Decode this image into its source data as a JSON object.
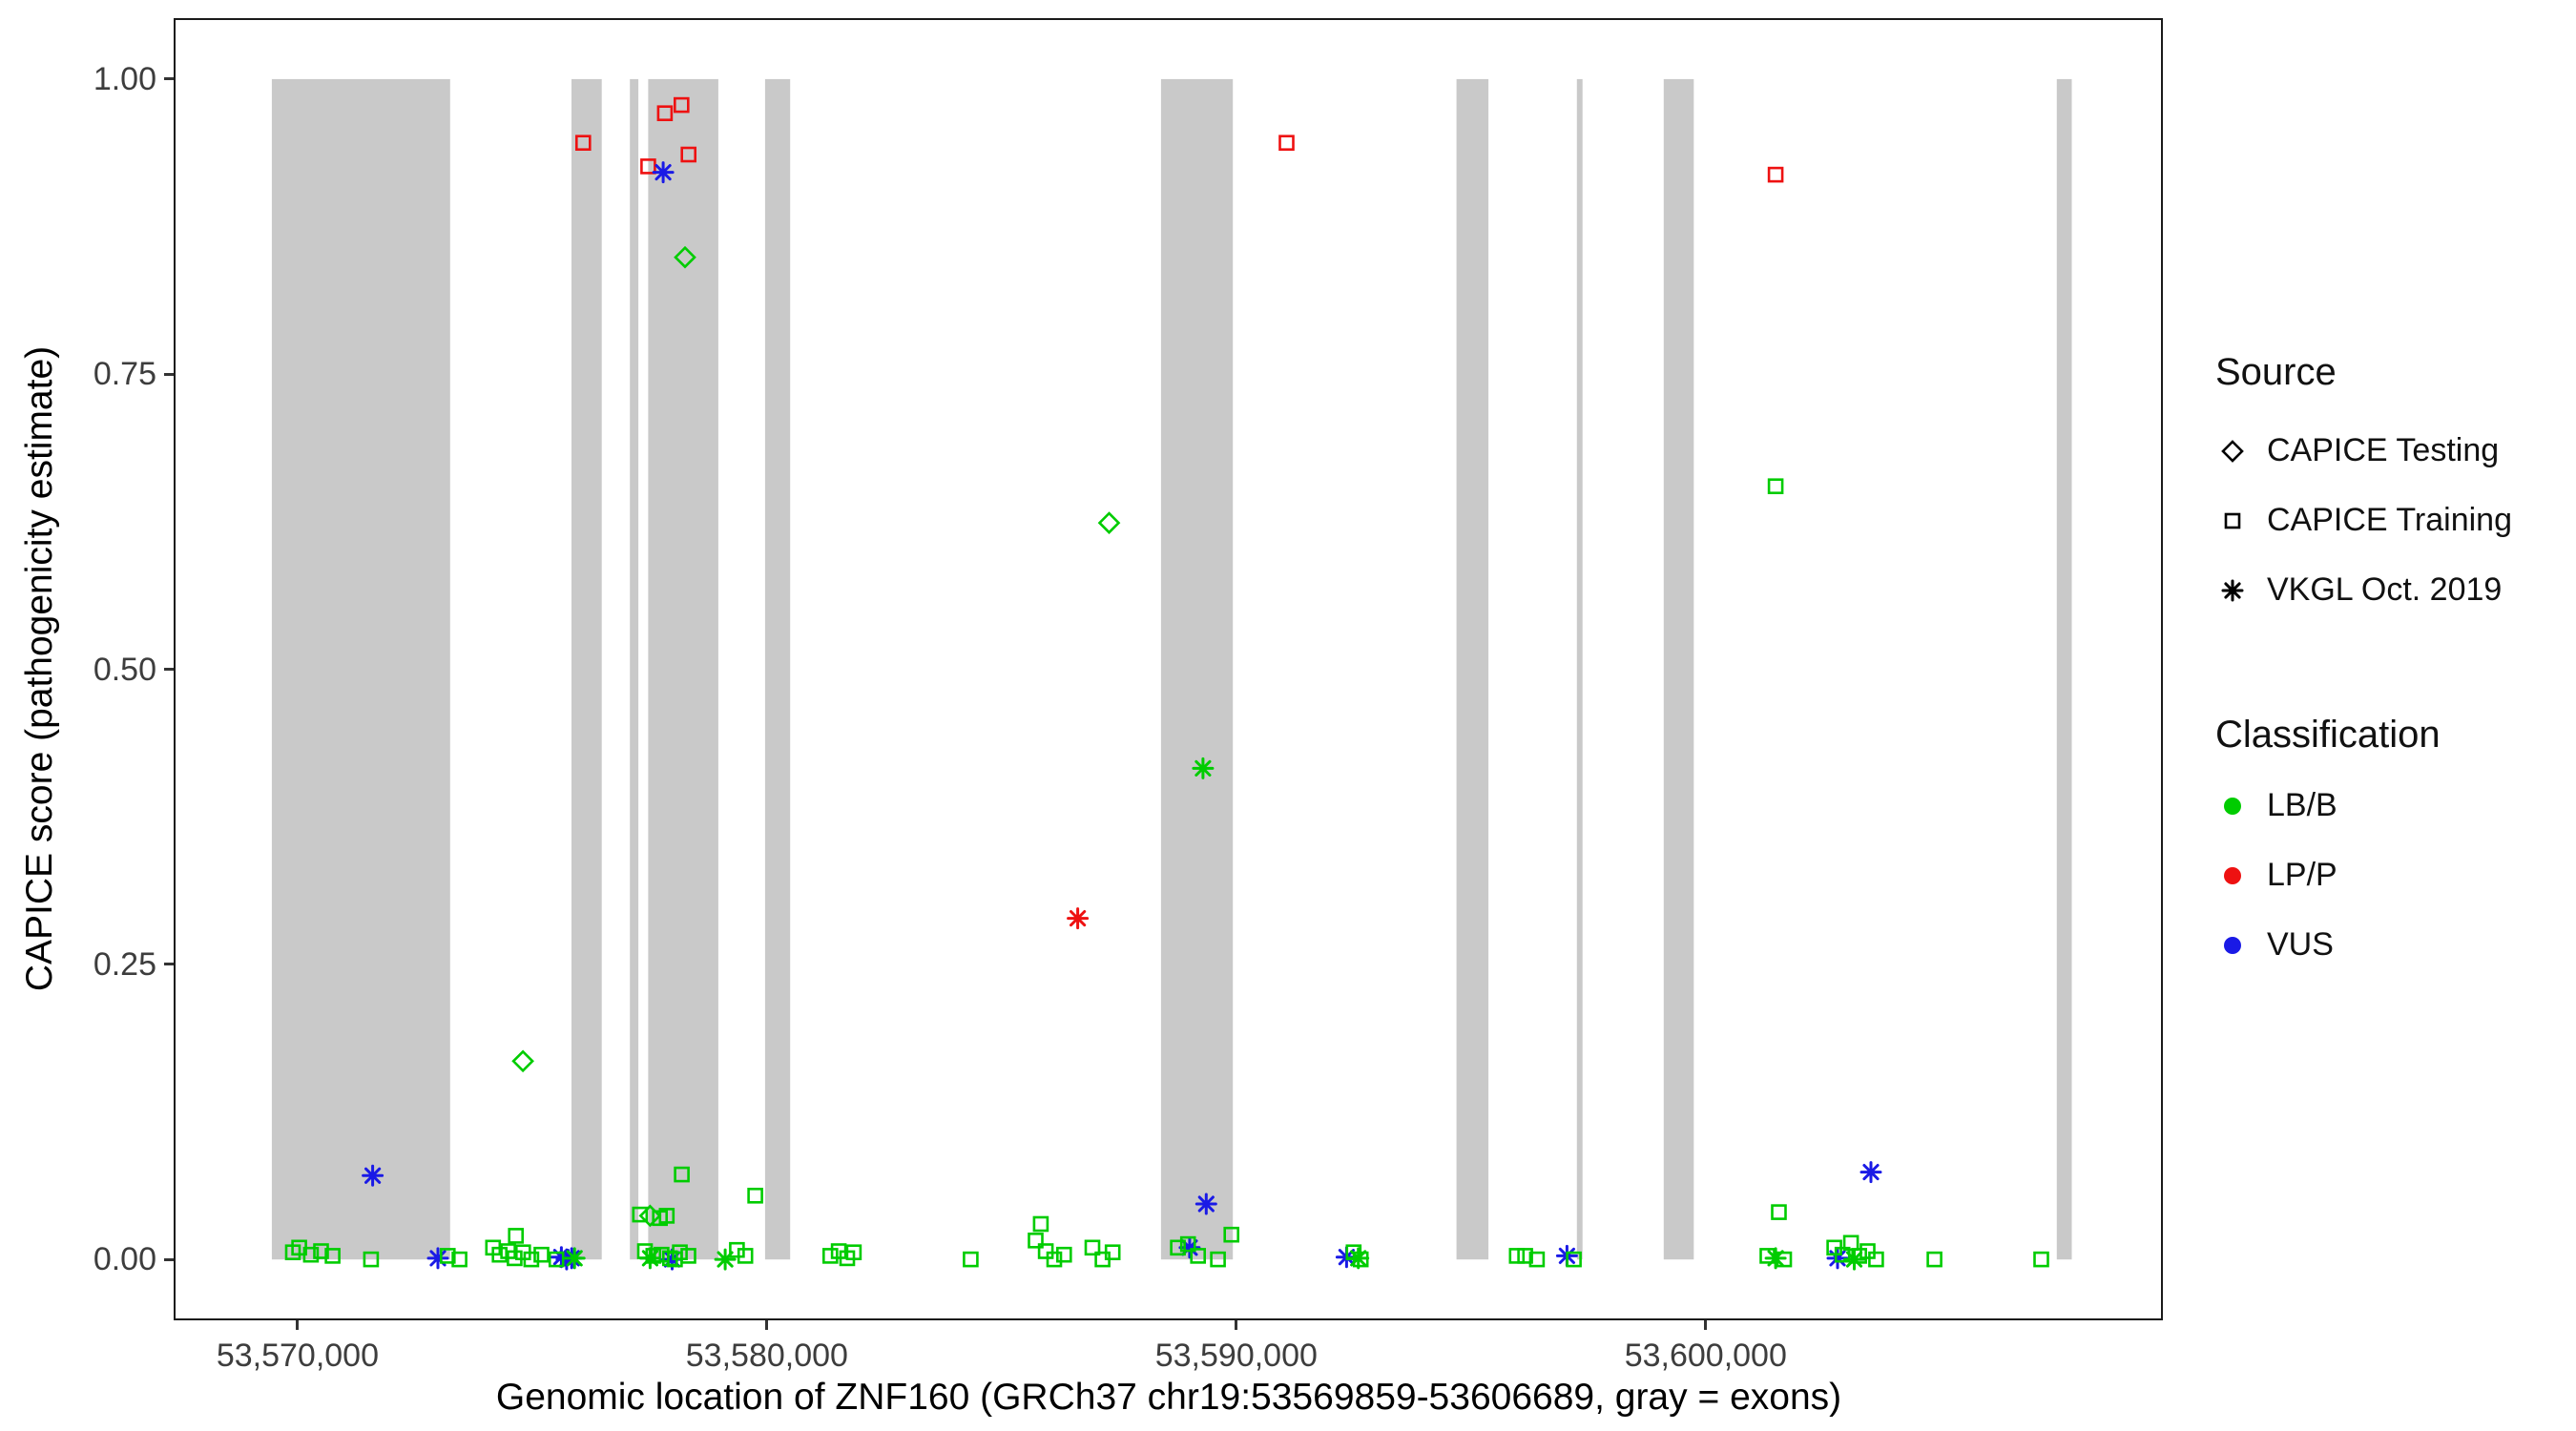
{
  "chart_data": {
    "type": "scatter",
    "title": "",
    "xlabel": "Genomic location of ZNF160 (GRCh37 chr19:53569859-53606689, gray = exons)",
    "ylabel": "CAPICE score (pathogenicity estimate)",
    "x_domain": [
      53567400,
      53609700
    ],
    "y_domain": [
      -0.05,
      1.05
    ],
    "grid": false,
    "legend_position": "right",
    "x_ticks": [
      {
        "value": 53570000,
        "label": "53,570,000"
      },
      {
        "value": 53580000,
        "label": "53,580,000"
      },
      {
        "value": 53590000,
        "label": "53,590,000"
      },
      {
        "value": 53600000,
        "label": "53,600,000"
      }
    ],
    "y_ticks": [
      {
        "value": 0.0,
        "label": "0.00"
      },
      {
        "value": 0.25,
        "label": "0.25"
      },
      {
        "value": 0.5,
        "label": "0.50"
      },
      {
        "value": 0.75,
        "label": "0.75"
      },
      {
        "value": 1.0,
        "label": "1.00"
      }
    ],
    "exon_band_color": "#C9C9C9",
    "exons": [
      [
        53569450,
        53573250
      ],
      [
        53575835,
        53576480
      ],
      [
        53577080,
        53577260
      ],
      [
        53577470,
        53578965
      ],
      [
        53579960,
        53580495
      ],
      [
        53588395,
        53589925
      ],
      [
        53594690,
        53595370
      ],
      [
        53597255,
        53597375
      ],
      [
        53599105,
        53599745
      ],
      [
        53607480,
        53607800
      ]
    ],
    "classification_colors": {
      "LB/B": "#00CC00",
      "LP/P": "#EE1111",
      "VUS": "#1A1AE6"
    },
    "source_shapes": {
      "test": "diamond",
      "train": "square",
      "vkgl": "asterisk"
    },
    "source_labels": {
      "test": "CAPICE Testing",
      "train": "CAPICE Training",
      "vkgl": "VKGL Oct. 2019"
    },
    "points_format": [
      "x_genomic_position",
      "y_capice_score",
      "source",
      "classification"
    ],
    "points": [
      [
        53576085,
        0.946,
        "train",
        "LP/P"
      ],
      [
        53577470,
        0.926,
        "train",
        "LP/P"
      ],
      [
        53577825,
        0.971,
        "train",
        "LP/P"
      ],
      [
        53578180,
        0.978,
        "train",
        "LP/P"
      ],
      [
        53578330,
        0.936,
        "train",
        "LP/P"
      ],
      [
        53591070,
        0.946,
        "train",
        "LP/P"
      ],
      [
        53601490,
        0.919,
        "train",
        "LP/P"
      ],
      [
        53601490,
        0.655,
        "train",
        "LB/B"
      ],
      [
        53578255,
        0.849,
        "test",
        "LB/B"
      ],
      [
        53587290,
        0.624,
        "test",
        "LB/B"
      ],
      [
        53574800,
        0.168,
        "test",
        "LB/B"
      ],
      [
        53577510,
        0.037,
        "test",
        "LB/B"
      ],
      [
        53577790,
        0.921,
        "vkgl",
        "VUS"
      ],
      [
        53571600,
        0.071,
        "vkgl",
        "VUS"
      ],
      [
        53589360,
        0.047,
        "vkgl",
        "VUS"
      ],
      [
        53603520,
        0.074,
        "vkgl",
        "VUS"
      ],
      [
        53572990,
        0.001,
        "vkgl",
        "VUS"
      ],
      [
        53575620,
        0.002,
        "vkgl",
        "VUS"
      ],
      [
        53575731,
        0.0,
        "vkgl",
        "VUS"
      ],
      [
        53575840,
        0.001,
        "vkgl",
        "VUS"
      ],
      [
        53589005,
        0.01,
        "vkgl",
        "VUS"
      ],
      [
        53592350,
        0.002,
        "vkgl",
        "VUS"
      ],
      [
        53597045,
        0.003,
        "vkgl",
        "VUS"
      ],
      [
        53602810,
        0.001,
        "vkgl",
        "VUS"
      ],
      [
        53577980,
        0.0,
        "vkgl",
        "VUS"
      ],
      [
        53577510,
        0.001,
        "vkgl",
        "LB/B"
      ],
      [
        53579110,
        0.0,
        "vkgl",
        "LB/B"
      ],
      [
        53575900,
        0.001,
        "vkgl",
        "LB/B"
      ],
      [
        53601490,
        0.001,
        "vkgl",
        "LB/B"
      ],
      [
        53603165,
        0.0,
        "vkgl",
        "LB/B"
      ],
      [
        53592600,
        0.001,
        "vkgl",
        "LB/B"
      ],
      [
        53589290,
        0.416,
        "vkgl",
        "LB/B"
      ],
      [
        53586620,
        0.289,
        "vkgl",
        "LP/P"
      ],
      [
        53569900,
        0.006,
        "train",
        "LB/B"
      ],
      [
        53570035,
        0.01,
        "train",
        "LB/B"
      ],
      [
        53570285,
        0.004,
        "train",
        "LB/B"
      ],
      [
        53570500,
        0.007,
        "train",
        "LB/B"
      ],
      [
        53570745,
        0.003,
        "train",
        "LB/B"
      ],
      [
        53571565,
        0.0,
        "train",
        "LB/B"
      ],
      [
        53573200,
        0.003,
        "train",
        "LB/B"
      ],
      [
        53573450,
        0.0,
        "train",
        "LB/B"
      ],
      [
        53574165,
        0.01,
        "train",
        "LB/B"
      ],
      [
        53574305,
        0.004,
        "train",
        "LB/B"
      ],
      [
        53574485,
        0.007,
        "train",
        "LB/B"
      ],
      [
        53574625,
        0.001,
        "train",
        "LB/B"
      ],
      [
        53574805,
        0.006,
        "train",
        "LB/B"
      ],
      [
        53574980,
        0.0,
        "train",
        "LB/B"
      ],
      [
        53575195,
        0.004,
        "train",
        "LB/B"
      ],
      [
        53574650,
        0.02,
        "train",
        "LB/B"
      ],
      [
        53575515,
        0.0,
        "train",
        "LB/B"
      ],
      [
        53577295,
        0.038,
        "train",
        "LB/B"
      ],
      [
        53577720,
        0.035,
        "train",
        "LB/B"
      ],
      [
        53577865,
        0.037,
        "train",
        "LB/B"
      ],
      [
        53578040,
        0.0,
        "train",
        "LB/B"
      ],
      [
        53577580,
        0.003,
        "train",
        "LB/B"
      ],
      [
        53577400,
        0.007,
        "train",
        "LB/B"
      ],
      [
        53577755,
        0.004,
        "train",
        "LB/B"
      ],
      [
        53577935,
        0.001,
        "train",
        "LB/B"
      ],
      [
        53578145,
        0.006,
        "train",
        "LB/B"
      ],
      [
        53578325,
        0.003,
        "train",
        "LB/B"
      ],
      [
        53578185,
        0.072,
        "train",
        "LB/B"
      ],
      [
        53579360,
        0.008,
        "train",
        "LB/B"
      ],
      [
        53579540,
        0.003,
        "train",
        "LB/B"
      ],
      [
        53579750,
        0.054,
        "train",
        "LB/B"
      ],
      [
        53581350,
        0.003,
        "train",
        "LB/B"
      ],
      [
        53581530,
        0.007,
        "train",
        "LB/B"
      ],
      [
        53581710,
        0.001,
        "train",
        "LB/B"
      ],
      [
        53581850,
        0.006,
        "train",
        "LB/B"
      ],
      [
        53584340,
        0.0,
        "train",
        "LB/B"
      ],
      [
        53585725,
        0.016,
        "train",
        "LB/B"
      ],
      [
        53585940,
        0.007,
        "train",
        "LB/B"
      ],
      [
        53586120,
        0.0,
        "train",
        "LB/B"
      ],
      [
        53586330,
        0.004,
        "train",
        "LB/B"
      ],
      [
        53585835,
        0.03,
        "train",
        "LB/B"
      ],
      [
        53586935,
        0.01,
        "train",
        "LB/B"
      ],
      [
        53587150,
        0.0,
        "train",
        "LB/B"
      ],
      [
        53587365,
        0.006,
        "train",
        "LB/B"
      ],
      [
        53588755,
        0.01,
        "train",
        "LB/B"
      ],
      [
        53588970,
        0.013,
        "train",
        "LB/B"
      ],
      [
        53589185,
        0.003,
        "train",
        "LB/B"
      ],
      [
        53589895,
        0.021,
        "train",
        "LB/B"
      ],
      [
        53589610,
        0.0,
        "train",
        "LB/B"
      ],
      [
        53592500,
        0.006,
        "train",
        "LB/B"
      ],
      [
        53592650,
        0.0,
        "train",
        "LB/B"
      ],
      [
        53595975,
        0.003,
        "train",
        "LB/B"
      ],
      [
        53596155,
        0.003,
        "train",
        "LB/B"
      ],
      [
        53596405,
        0.0,
        "train",
        "LB/B"
      ],
      [
        53597190,
        0.0,
        "train",
        "LB/B"
      ],
      [
        53601315,
        0.003,
        "train",
        "LB/B"
      ],
      [
        53601560,
        0.04,
        "train",
        "LB/B"
      ],
      [
        53601670,
        0.0,
        "train",
        "LB/B"
      ],
      [
        53602740,
        0.01,
        "train",
        "LB/B"
      ],
      [
        53602915,
        0.004,
        "train",
        "LB/B"
      ],
      [
        53603095,
        0.014,
        "train",
        "LB/B"
      ],
      [
        53603270,
        0.003,
        "train",
        "LB/B"
      ],
      [
        53603450,
        0.007,
        "train",
        "LB/B"
      ],
      [
        53603630,
        0.0,
        "train",
        "LB/B"
      ],
      [
        53604875,
        0.0,
        "train",
        "LB/B"
      ],
      [
        53607150,
        0.0,
        "train",
        "LB/B"
      ]
    ]
  },
  "legend": {
    "source": {
      "title": "Source",
      "items": [
        {
          "label": "CAPICE Testing",
          "shape": "diamond"
        },
        {
          "label": "CAPICE Training",
          "shape": "square"
        },
        {
          "label": "VKGL Oct. 2019",
          "shape": "asterisk"
        }
      ]
    },
    "classification": {
      "title": "Classification",
      "items": [
        {
          "label": "LB/B",
          "color": "#00CC00"
        },
        {
          "label": "LP/P",
          "color": "#EE1111"
        },
        {
          "label": "VUS",
          "color": "#1A1AE6"
        }
      ]
    }
  }
}
